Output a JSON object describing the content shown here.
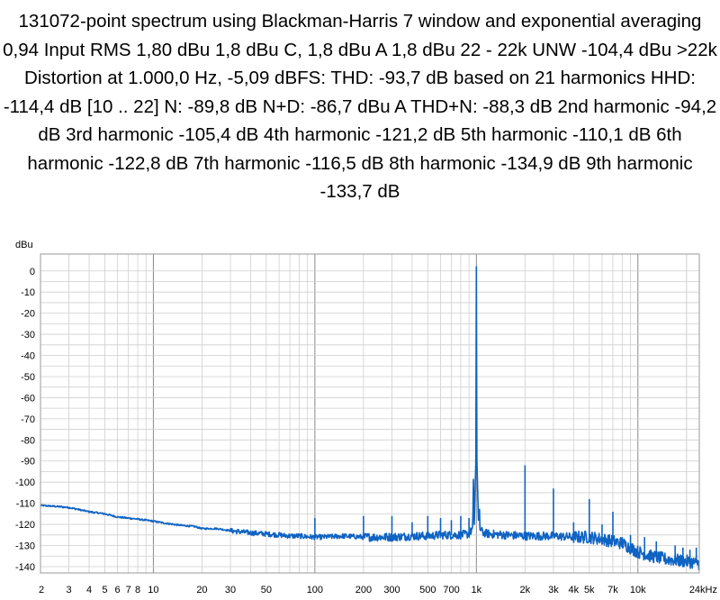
{
  "title": "131072-point spectrum using Blackman-Harris 7 window and exponential averaging 0,94 Input RMS 1,80 dBu 1,8 dBu C, 1,8 dBu A 1,8 dBu 22 - 22k UNW -104,4 dBu >22k Distortion at 1.000,0 Hz, -5,09 dBFS: THD: -93,7 dB based on 21 harmonics HHD: -114,4 dB [10 .. 22] N: -89,8 dB N+D: -86,7 dBu A THD+N: -88,3 dB 2nd harmonic -94,2 dB 3rd harmonic -105,4 dB 4th harmonic -121,2 dB 5th harmonic -110,1 dB 6th harmonic -122,8 dB 7th harmonic -116,5 dB 8th harmonic -134,9 dB 9th harmonic -133,7 dB",
  "colors": {
    "trace": "#0f63c2",
    "grid": "#cfcfcf",
    "grid_major": "#8a8a8a",
    "frame": "#9a9a9a"
  },
  "chart_data": {
    "type": "line",
    "title": "131072-point spectrum using Blackman-Harris 7 window and exponential averaging 0,94",
    "xlabel": "",
    "ylabel": "dBu",
    "x_scale": "log",
    "xlim": [
      2,
      24000
    ],
    "ylim": [
      -143,
      8
    ],
    "grid": true,
    "y_ticks": [
      0,
      -10,
      -20,
      -30,
      -40,
      -50,
      -60,
      -70,
      -80,
      -90,
      -100,
      -110,
      -120,
      -130,
      -140
    ],
    "x_tick_values": [
      2,
      3,
      4,
      5,
      6,
      7,
      8,
      10,
      20,
      30,
      50,
      100,
      200,
      300,
      500,
      700,
      1000,
      2000,
      3000,
      4000,
      5000,
      7000,
      10000,
      24000
    ],
    "x_tick_labels": [
      "2",
      "3",
      "4",
      "5",
      "6",
      "7",
      "8",
      "10",
      "20",
      "30",
      "50",
      "100",
      "200",
      "300",
      "500",
      "700",
      "1k",
      "2k",
      "3k",
      "4k",
      "5k",
      "7k",
      "10k",
      "24kHz"
    ],
    "series": [
      {
        "x": [
          2,
          2.5,
          3,
          4,
          5,
          6,
          8,
          10,
          12,
          15,
          18,
          20,
          25,
          30,
          40,
          50,
          60,
          70,
          80,
          95,
          100,
          110,
          150,
          200,
          300,
          400,
          500,
          600,
          700,
          800,
          900,
          950,
          1000,
          1050,
          1100,
          1200,
          1500,
          2000,
          3000,
          4000,
          5000,
          6000,
          7000,
          8000,
          10000,
          12000,
          15000,
          20000,
          24000
        ],
        "y": [
          -111,
          -111.5,
          -112,
          -114,
          -115,
          -116.5,
          -117.5,
          -118.5,
          -119.5,
          -120.5,
          -121,
          -122,
          -122,
          -123,
          -124,
          -124.5,
          -125,
          -125.5,
          -125.5,
          -126,
          -126,
          -126,
          -125.5,
          -126,
          -126,
          -125.5,
          -125.5,
          -125,
          -125,
          -125,
          -124.5,
          -122,
          2,
          -122,
          -124,
          -124.5,
          -125,
          -125.5,
          -125.5,
          -126,
          -126,
          -127,
          -128,
          -129,
          -133,
          -135,
          -136.5,
          -137.5,
          -138.5
        ]
      }
    ],
    "spikes": [
      {
        "x": 100,
        "y": -117
      },
      {
        "x": 200,
        "y": -116
      },
      {
        "x": 300,
        "y": -116
      },
      {
        "x": 400,
        "y": -119
      },
      {
        "x": 500,
        "y": -116
      },
      {
        "x": 600,
        "y": -117
      },
      {
        "x": 700,
        "y": -118
      },
      {
        "x": 800,
        "y": -116
      },
      {
        "x": 900,
        "y": -117
      },
      {
        "x": 2000,
        "y": -92
      },
      {
        "x": 3000,
        "y": -103
      },
      {
        "x": 4000,
        "y": -119
      },
      {
        "x": 5000,
        "y": -108
      },
      {
        "x": 6000,
        "y": -120
      },
      {
        "x": 7000,
        "y": -114
      },
      {
        "x": 8000,
        "y": -126
      },
      {
        "x": 9000,
        "y": -125
      },
      {
        "x": 11000,
        "y": -126
      },
      {
        "x": 13000,
        "y": -128
      },
      {
        "x": 17000,
        "y": -130
      },
      {
        "x": 19000,
        "y": -131
      },
      {
        "x": 21000,
        "y": -132
      },
      {
        "x": 23000,
        "y": -131
      }
    ]
  }
}
